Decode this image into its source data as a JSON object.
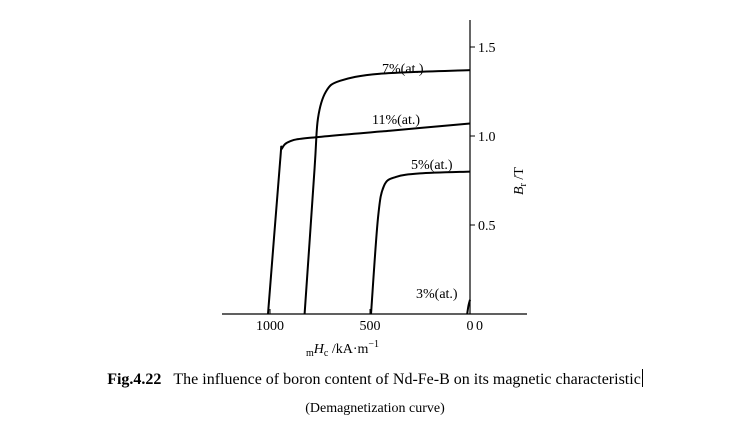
{
  "chart_data": {
    "type": "line",
    "x_axis": {
      "label_prefix": "m",
      "label_main": "H",
      "label_sub": "c",
      "label_rest": " /kA·m",
      "label_sup": "−1",
      "ticks": [
        1000,
        500,
        0
      ],
      "range": [
        1050,
        -50
      ],
      "direction": "reversed"
    },
    "y_axis": {
      "label_main": "B",
      "label_sub": "r",
      "label_rest": " /T",
      "ticks": [
        {
          "value": 1.5,
          "label": "1.5"
        },
        {
          "value": 1.0,
          "label": "1.0"
        },
        {
          "value": 0.5,
          "label": "0.5"
        },
        {
          "value": 0,
          "label": "0"
        }
      ],
      "range": [
        0,
        1.65
      ]
    },
    "series": [
      {
        "name": "7%(at.)",
        "points": [
          [
            827,
            0
          ],
          [
            777,
            0.82
          ],
          [
            760,
            1.1
          ],
          [
            720,
            1.25
          ],
          [
            650,
            1.31
          ],
          [
            450,
            1.35
          ],
          [
            0,
            1.37
          ]
        ]
      },
      {
        "name": "11%(at.)",
        "points": [
          [
            1010,
            0
          ],
          [
            950,
            0.85
          ],
          [
            940,
            0.93
          ],
          [
            900,
            0.97
          ],
          [
            800,
            0.99
          ],
          [
            400,
            1.03
          ],
          [
            0,
            1.07
          ]
        ]
      },
      {
        "name": "5%(at.)",
        "points": [
          [
            495,
            0
          ],
          [
            460,
            0.54
          ],
          [
            430,
            0.72
          ],
          [
            370,
            0.77
          ],
          [
            250,
            0.79
          ],
          [
            0,
            0.8
          ]
        ]
      },
      {
        "name": "3%(at.)",
        "points": [
          [
            14,
            0
          ],
          [
            7,
            0.05
          ],
          [
            0,
            0.08
          ]
        ]
      }
    ]
  },
  "caption": {
    "figure_number": "Fig.4.22",
    "title": "The influence of boron content of Nd-Fe-B on its magnetic characteristic",
    "subtitle": "(Demagnetization curve)"
  }
}
